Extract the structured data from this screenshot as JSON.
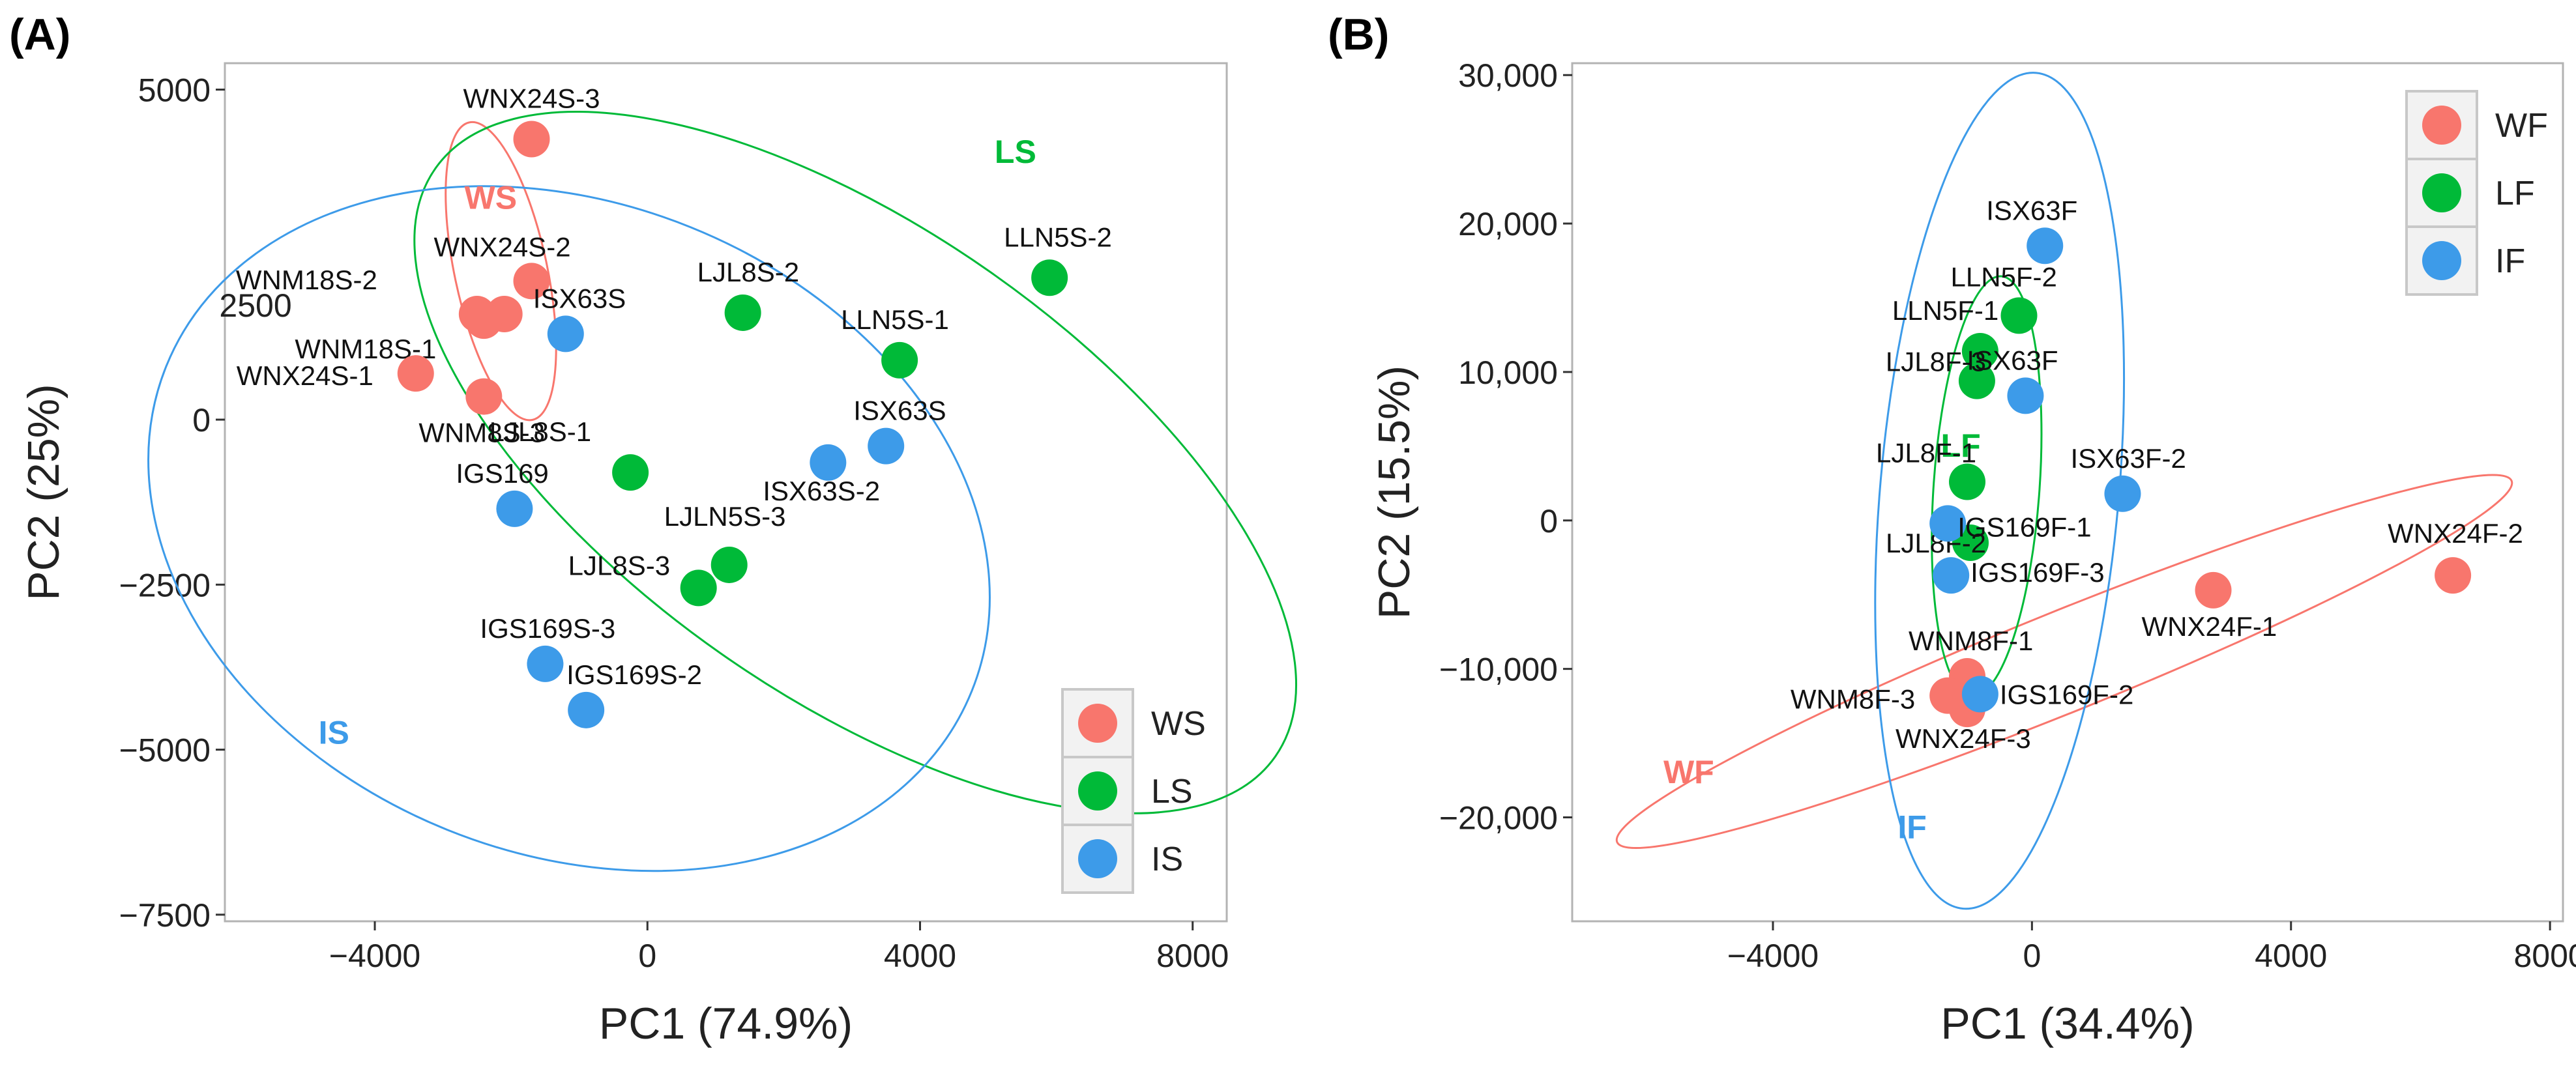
{
  "panels": [
    {
      "label": "(A)",
      "xlabel": "PC1 (74.9%)",
      "ylabel": "PC2 (25%)",
      "xlim": [
        -6200,
        8500
      ],
      "ylim": [
        -7600,
        5400
      ],
      "xticks": [
        {
          "v": -4000,
          "t": "−4000"
        },
        {
          "v": 0,
          "t": "0"
        },
        {
          "v": 4000,
          "t": "4000"
        },
        {
          "v": 8000,
          "t": "8000"
        }
      ],
      "yticks": [
        {
          "v": 5000,
          "t": "5000"
        },
        {
          "v": 0,
          "t": "0"
        },
        {
          "v": -2500,
          "t": "−2500"
        },
        {
          "v": -5000,
          "t": "−5000"
        },
        {
          "v": -7500,
          "t": "−7500"
        }
      ],
      "extra_text": [
        {
          "text": "2500",
          "x": -5750,
          "y": 1740
        }
      ]
    },
    {
      "label": "(B)",
      "xlabel": "PC1 (34.4%)",
      "ylabel": "PC2 (15.5%)",
      "xlim": [
        -7100,
        8200
      ],
      "ylim": [
        -27000,
        30800
      ],
      "xticks": [
        {
          "v": -4000,
          "t": "−4000"
        },
        {
          "v": 0,
          "t": "0"
        },
        {
          "v": 4000,
          "t": "4000"
        },
        {
          "v": 8000,
          "t": "8000"
        }
      ],
      "yticks": [
        {
          "v": 30000,
          "t": "30,000"
        },
        {
          "v": 20000,
          "t": "20,000"
        },
        {
          "v": 10000,
          "t": "10,000"
        },
        {
          "v": 0,
          "t": "0"
        },
        {
          "v": -10000,
          "t": "−10,000"
        },
        {
          "v": -20000,
          "t": "−20,000"
        }
      ],
      "extra_text": []
    }
  ],
  "chart_data": [
    {
      "type": "scatter",
      "title": "(A)",
      "xlabel": "PC1 (74.9%)",
      "ylabel": "PC2 (25%)",
      "xlim": [
        -6200,
        8500
      ],
      "ylim": [
        -7600,
        5400
      ],
      "grid": false,
      "legend_position": "bottom-right",
      "series": [
        {
          "name": "WS",
          "color": "#f8766d",
          "points": [
            {
              "label": "WNX24S-3",
              "x": -1700,
              "y": 4250
            },
            {
              "label": "WNX24S-2",
              "x": -1700,
              "y": 2100
            },
            {
              "label": "WNM18S-2",
              "x": -2500,
              "y": 1600
            },
            {
              "label": "",
              "x": -2100,
              "y": 1600
            },
            {
              "label": "WNM18S-1",
              "x": -2400,
              "y": 1500
            },
            {
              "label": "WNX24S-1",
              "x": -3400,
              "y": 700
            },
            {
              "label": "WNM8S-3",
              "x": -2400,
              "y": 350
            }
          ]
        },
        {
          "name": "LS",
          "color": "#00ba38",
          "points": [
            {
              "label": "LLN5S-2",
              "x": 5900,
              "y": 2150
            },
            {
              "label": "LJL8S-2",
              "x": 1400,
              "y": 1620
            },
            {
              "label": "LLN5S-1",
              "x": 3700,
              "y": 900
            },
            {
              "label": "LJL8S-1",
              "x": -250,
              "y": -800
            },
            {
              "label": "LJLN5S-3",
              "x": 1200,
              "y": -2200
            },
            {
              "label": "LJL8S-3",
              "x": 750,
              "y": -2550
            }
          ]
        },
        {
          "name": "IS",
          "color": "#3d9be9",
          "points": [
            {
              "label": "ISX63S",
              "x": -1200,
              "y": 1300
            },
            {
              "label": "ISX63S",
              "x": 3500,
              "y": -400
            },
            {
              "label": "ISX63S-2",
              "x": 2650,
              "y": -650
            },
            {
              "label": "IGS169",
              "x": -1950,
              "y": -1350
            },
            {
              "label": "IGS169S-3",
              "x": -1500,
              "y": -3700
            },
            {
              "label": "IGS169S-2",
              "x": -900,
              "y": -4400
            }
          ]
        }
      ],
      "ellipse_labels": [
        {
          "text": "WS",
          "series": "WS"
        },
        {
          "text": "LS",
          "series": "LS"
        },
        {
          "text": "IS",
          "series": "IS"
        }
      ],
      "legend": [
        "WS",
        "LS",
        "IS"
      ]
    },
    {
      "type": "scatter",
      "title": "(B)",
      "xlabel": "PC1 (34.4%)",
      "ylabel": "PC2 (15.5%)",
      "xlim": [
        -7100,
        8200
      ],
      "ylim": [
        -27000,
        30800
      ],
      "grid": false,
      "legend_position": "top-right",
      "series": [
        {
          "name": "WF",
          "color": "#f8766d",
          "points": [
            {
              "label": "WNX24F-2",
              "x": 6500,
              "y": -3700
            },
            {
              "label": "WNX24F-1",
              "x": 2800,
              "y": -4700
            },
            {
              "label": "WNM8F-1",
              "x": -1000,
              "y": -10500
            },
            {
              "label": "WNM8F-3",
              "x": -1300,
              "y": -11800
            },
            {
              "label": "",
              "x": -1100,
              "y": -11800
            },
            {
              "label": "WNX24F-3",
              "x": -1000,
              "y": -12700
            }
          ]
        },
        {
          "name": "LF",
          "color": "#00ba38",
          "points": [
            {
              "label": "LLN5F-2",
              "x": -200,
              "y": 13800
            },
            {
              "label": "LLN5F-1",
              "x": -800,
              "y": 11400
            },
            {
              "label": "LJL8F-3",
              "x": -850,
              "y": 9400
            },
            {
              "label": "LJL8F-1",
              "x": -1000,
              "y": 2600
            },
            {
              "label": "LJL8F-2",
              "x": -950,
              "y": -1500
            }
          ]
        },
        {
          "name": "IF",
          "color": "#3d9be9",
          "points": [
            {
              "label": "ISX63F",
              "x": 200,
              "y": 18500
            },
            {
              "label": "ISX63F",
              "x": -100,
              "y": 8400
            },
            {
              "label": "ISX63F-2",
              "x": 1400,
              "y": 1800
            },
            {
              "label": "IGS169F-1",
              "x": -1300,
              "y": -200
            },
            {
              "label": "IGS169F-3",
              "x": -1250,
              "y": -3700
            },
            {
              "label": "IGS169F-2",
              "x": -800,
              "y": -11700
            }
          ]
        }
      ],
      "ellipse_labels": [
        {
          "text": "WF",
          "series": "WF"
        },
        {
          "text": "LF",
          "series": "LF"
        },
        {
          "text": "IF",
          "series": "IF"
        }
      ],
      "legend": [
        "WF",
        "LF",
        "IF"
      ]
    }
  ]
}
